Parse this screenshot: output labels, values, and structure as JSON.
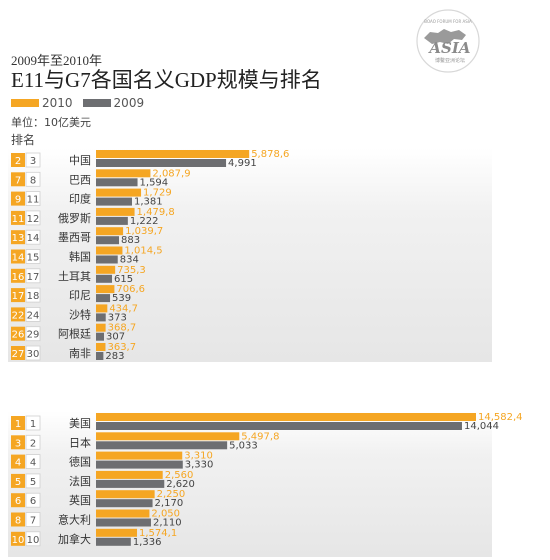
{
  "header": {
    "subtitle": "2009年至2010年",
    "title": "E11与G7各国名义GDP规模与排名",
    "unit": "单位：10亿美元",
    "rank_header": "排名"
  },
  "legend": [
    {
      "label": "2010",
      "color": "#f5a623"
    },
    {
      "label": "2009",
      "color": "#6d6e71"
    }
  ],
  "logo": {
    "text": "ASIA",
    "tagline": "BOAO FORUM FOR ASIA",
    "subtext": "博鳌亚洲论坛"
  },
  "colors": {
    "y2010": "#f5a623",
    "y2009": "#6d6e71",
    "rank_old": "#ffffff",
    "label_2010": "#f5a623",
    "label_2009": "#444444"
  },
  "chart_data": [
    {
      "type": "bar",
      "title": "E11",
      "series": [
        {
          "name": "2010"
        },
        {
          "name": "2009"
        }
      ],
      "rows": [
        {
          "rank_2010": "2",
          "rank_2009": "3",
          "country": "中国",
          "v2010": 5878.6,
          "v2009": 4991,
          "label_2010": "5,878,6",
          "label_2009": "4,991"
        },
        {
          "rank_2010": "7",
          "rank_2009": "8",
          "country": "巴西",
          "v2010": 2087.9,
          "v2009": 1594,
          "label_2010": "2,087,9",
          "label_2009": "1,594"
        },
        {
          "rank_2010": "9",
          "rank_2009": "11",
          "country": "印度",
          "v2010": 1729,
          "v2009": 1381,
          "label_2010": "1,729",
          "label_2009": "1,381"
        },
        {
          "rank_2010": "11",
          "rank_2009": "12",
          "country": "俄罗斯",
          "v2010": 1479.8,
          "v2009": 1222,
          "label_2010": "1,479,8",
          "label_2009": "1,222"
        },
        {
          "rank_2010": "13",
          "rank_2009": "14",
          "country": "墨西哥",
          "v2010": 1039.7,
          "v2009": 883,
          "label_2010": "1,039,7",
          "label_2009": "883"
        },
        {
          "rank_2010": "14",
          "rank_2009": "15",
          "country": "韩国",
          "v2010": 1014.5,
          "v2009": 834,
          "label_2010": "1,014,5",
          "label_2009": "834"
        },
        {
          "rank_2010": "16",
          "rank_2009": "17",
          "country": "土耳其",
          "v2010": 735.3,
          "v2009": 615,
          "label_2010": "735,3",
          "label_2009": "615"
        },
        {
          "rank_2010": "17",
          "rank_2009": "18",
          "country": "印尼",
          "v2010": 706.6,
          "v2009": 539,
          "label_2010": "706,6",
          "label_2009": "539"
        },
        {
          "rank_2010": "22",
          "rank_2009": "24",
          "country": "沙特",
          "v2010": 434.7,
          "v2009": 373,
          "label_2010": "434,7",
          "label_2009": "373"
        },
        {
          "rank_2010": "26",
          "rank_2009": "29",
          "country": "阿根廷",
          "v2010": 368.7,
          "v2009": 307,
          "label_2010": "368,7",
          "label_2009": "307"
        },
        {
          "rank_2010": "27",
          "rank_2009": "30",
          "country": "南非",
          "v2010": 363.7,
          "v2009": 283,
          "label_2010": "363,7",
          "label_2009": "283"
        }
      ]
    },
    {
      "type": "bar",
      "title": "G7",
      "series": [
        {
          "name": "2010"
        },
        {
          "name": "2009"
        }
      ],
      "rows": [
        {
          "rank_2010": "1",
          "rank_2009": "1",
          "country": "美国",
          "v2010": 14582.4,
          "v2009": 14044,
          "label_2010": "14,582,4",
          "label_2009": "14,044"
        },
        {
          "rank_2010": "3",
          "rank_2009": "2",
          "country": "日本",
          "v2010": 5497.8,
          "v2009": 5033,
          "label_2010": "5,497,8",
          "label_2009": "5,033"
        },
        {
          "rank_2010": "4",
          "rank_2009": "4",
          "country": "德国",
          "v2010": 3310,
          "v2009": 3330,
          "label_2010": "3,310",
          "label_2009": "3,330"
        },
        {
          "rank_2010": "5",
          "rank_2009": "5",
          "country": "法国",
          "v2010": 2560,
          "v2009": 2620,
          "label_2010": "2,560",
          "label_2009": "2,620"
        },
        {
          "rank_2010": "6",
          "rank_2009": "6",
          "country": "英国",
          "v2010": 2250,
          "v2009": 2170,
          "label_2010": "2,250",
          "label_2009": "2,170"
        },
        {
          "rank_2010": "8",
          "rank_2009": "7",
          "country": "意大利",
          "v2010": 2050,
          "v2009": 2110,
          "label_2010": "2,050",
          "label_2009": "2,110"
        },
        {
          "rank_2010": "10",
          "rank_2009": "10",
          "country": "加拿大",
          "v2010": 1574.1,
          "v2009": 1336,
          "label_2010": "1,574,1",
          "label_2009": "1,336"
        }
      ]
    }
  ]
}
